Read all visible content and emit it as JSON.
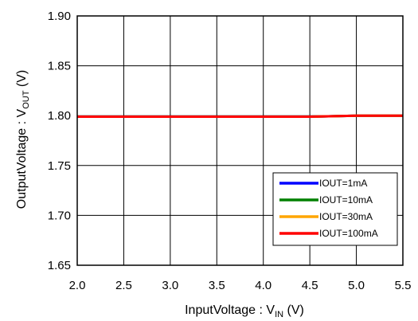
{
  "chart_data": {
    "type": "line",
    "xlabel": {
      "main": "InputVoltage : V",
      "sub": "IN",
      "unit": " (V)"
    },
    "ylabel": {
      "main": "OutputVoltage : V",
      "sub": "OUT",
      "unit": " (V)"
    },
    "xlim": [
      2.0,
      5.5
    ],
    "ylim": [
      1.65,
      1.9
    ],
    "x_ticks": [
      "2.0",
      "2.5",
      "3.0",
      "3.5",
      "4.0",
      "4.5",
      "5.0",
      "5.5"
    ],
    "y_ticks": [
      "1.90",
      "1.85",
      "1.80",
      "1.75",
      "1.70",
      "1.65"
    ],
    "grid": true,
    "legend_position": "bottom-right",
    "series": [
      {
        "name": "IOUT=1mA",
        "color": "#0000ff",
        "x": [
          2.0,
          2.5,
          3.0,
          3.5,
          4.0,
          4.5,
          5.0,
          5.5
        ],
        "y": [
          1.799,
          1.799,
          1.799,
          1.799,
          1.799,
          1.799,
          1.8,
          1.8
        ]
      },
      {
        "name": "IOUT=10mA",
        "color": "#008000",
        "x": [
          2.0,
          2.5,
          3.0,
          3.5,
          4.0,
          4.5,
          5.0,
          5.5
        ],
        "y": [
          1.799,
          1.799,
          1.799,
          1.799,
          1.799,
          1.799,
          1.8,
          1.8
        ]
      },
      {
        "name": "IOUT=30mA",
        "color": "#ffa500",
        "x": [
          2.0,
          2.5,
          3.0,
          3.5,
          4.0,
          4.5,
          5.0,
          5.5
        ],
        "y": [
          1.799,
          1.799,
          1.799,
          1.799,
          1.799,
          1.799,
          1.8,
          1.8
        ]
      },
      {
        "name": "IOUT=100mA",
        "color": "#ff0000",
        "x": [
          2.0,
          2.5,
          3.0,
          3.5,
          4.0,
          4.5,
          5.0,
          5.5
        ],
        "y": [
          1.799,
          1.799,
          1.799,
          1.799,
          1.799,
          1.799,
          1.8,
          1.8
        ]
      }
    ]
  }
}
